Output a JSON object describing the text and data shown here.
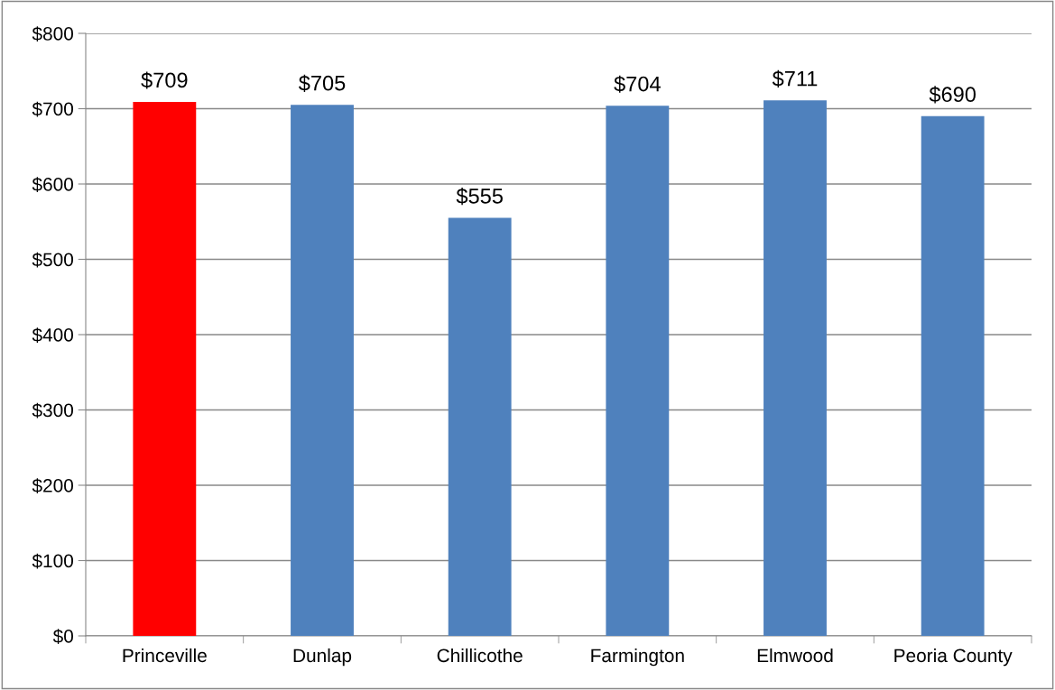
{
  "chart_data": {
    "type": "bar",
    "categories": [
      "Princeville",
      "Dunlap",
      "Chillicothe",
      "Farmington",
      "Elmwood",
      "Peoria County"
    ],
    "values": [
      709,
      705,
      555,
      704,
      711,
      690
    ],
    "colors": [
      "#ff0000",
      "#4f81bd",
      "#4f81bd",
      "#4f81bd",
      "#4f81bd",
      "#4f81bd"
    ],
    "value_labels": [
      "$709",
      "$705",
      "$555",
      "$704",
      "$711",
      "$690"
    ],
    "ylim": [
      0,
      800
    ],
    "yticks": [
      {
        "value": 0,
        "label": "$0"
      },
      {
        "value": 100,
        "label": "$100"
      },
      {
        "value": 200,
        "label": "$200"
      },
      {
        "value": 300,
        "label": "$300"
      },
      {
        "value": 400,
        "label": "$400"
      },
      {
        "value": 500,
        "label": "$500"
      },
      {
        "value": 600,
        "label": "$600"
      },
      {
        "value": 700,
        "label": "$700"
      },
      {
        "value": 800,
        "label": "$800"
      }
    ],
    "grid": "y",
    "legend": false
  }
}
